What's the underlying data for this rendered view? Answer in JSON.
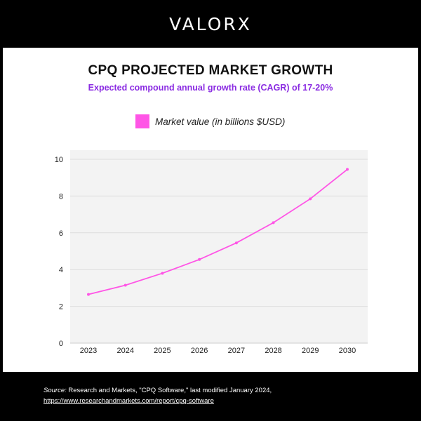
{
  "header": {
    "logo_text": "VALORX"
  },
  "chart_data": {
    "type": "line",
    "title": "CPQ PROJECTED MARKET GROWTH",
    "subtitle": "Expected compound annual growth rate (CAGR) of 17-20%",
    "xlabel": "",
    "ylabel": "",
    "categories": [
      "2023",
      "2024",
      "2025",
      "2026",
      "2027",
      "2028",
      "2029",
      "2030"
    ],
    "series": [
      {
        "name": "Market value (in billions $USD)",
        "values": [
          2.65,
          3.15,
          3.8,
          4.55,
          5.45,
          6.55,
          7.85,
          9.45
        ],
        "color": "#ff55e6"
      }
    ],
    "ylim": [
      0,
      10
    ],
    "yticks": [
      "0",
      "2",
      "4",
      "6",
      "8",
      "10"
    ],
    "grid": true,
    "legend_position": "top-center",
    "plot_background": "#f3f3f3",
    "grid_color": "#dddddd"
  },
  "footer": {
    "source_label": "Source:",
    "source_text": " Research and Markets, \"CPQ Software,\" last modified January 2024,",
    "source_url": "https://www.researchandmarkets.com/report/cpq-software"
  }
}
